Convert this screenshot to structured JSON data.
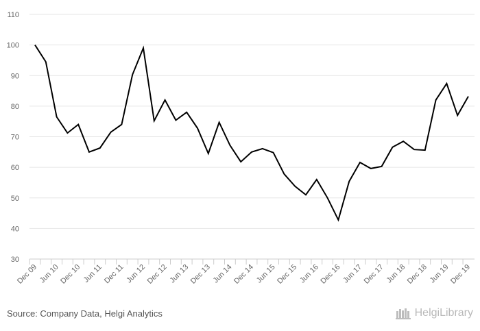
{
  "chart_data": {
    "type": "line",
    "title": "",
    "xlabel": "",
    "ylabel": "",
    "ylim": [
      30,
      110
    ],
    "yticks": [
      30,
      40,
      50,
      60,
      70,
      80,
      90,
      100,
      110
    ],
    "grid": true,
    "legend": "none",
    "x_tick_labels": [
      "Dec 09",
      "Jun 10",
      "Dec 10",
      "Jun 11",
      "Dec 11",
      "Jun 12",
      "Dec 12",
      "Jun 13",
      "Dec 13",
      "Jun 14",
      "Dec 14",
      "Jun 15",
      "Dec 15",
      "Jun 16",
      "Dec 16",
      "Jun 17",
      "Dec 17",
      "Jun 18",
      "Dec 18",
      "Jun 19",
      "Dec 19"
    ],
    "x": [
      "Dec 09",
      "Mar 10",
      "Jun 10",
      "Sep 10",
      "Dec 10",
      "Mar 11",
      "Jun 11",
      "Sep 11",
      "Dec 11",
      "Mar 12",
      "Jun 12",
      "Sep 12",
      "Dec 12",
      "Mar 13",
      "Jun 13",
      "Sep 13",
      "Dec 13",
      "Mar 14",
      "Jun 14",
      "Sep 14",
      "Dec 14",
      "Mar 15",
      "Jun 15",
      "Sep 15",
      "Dec 15",
      "Mar 16",
      "Jun 16",
      "Sep 16",
      "Dec 16",
      "Mar 17",
      "Jun 17",
      "Sep 17",
      "Dec 17",
      "Mar 18",
      "Jun 18",
      "Sep 18",
      "Dec 18",
      "Mar 19",
      "Jun 19",
      "Sep 19",
      "Dec 19"
    ],
    "series": [
      {
        "values": [
          100,
          94.5,
          76.5,
          71.2,
          74,
          65,
          66.3,
          71.5,
          74,
          90.3,
          99,
          75.2,
          82,
          75.4,
          78,
          72.8,
          64.5,
          74.7,
          67.2,
          61.8,
          65,
          66.1,
          64.8,
          57.8,
          53.8,
          51,
          56,
          50,
          42.8,
          55.4,
          61.6,
          59.6,
          60.3,
          66.6,
          68.5,
          65.8,
          65.6,
          82,
          87.4,
          77,
          83.2
        ],
        "color": "#000000"
      }
    ]
  },
  "footer": {
    "source": "Source: Company Data, Helgi Analytics",
    "logo_text": "HelgiLibrary"
  },
  "colors": {
    "line": "#000000",
    "grid": "#e6e6e6",
    "axis": "#cccccc",
    "tick_text": "#666666"
  }
}
